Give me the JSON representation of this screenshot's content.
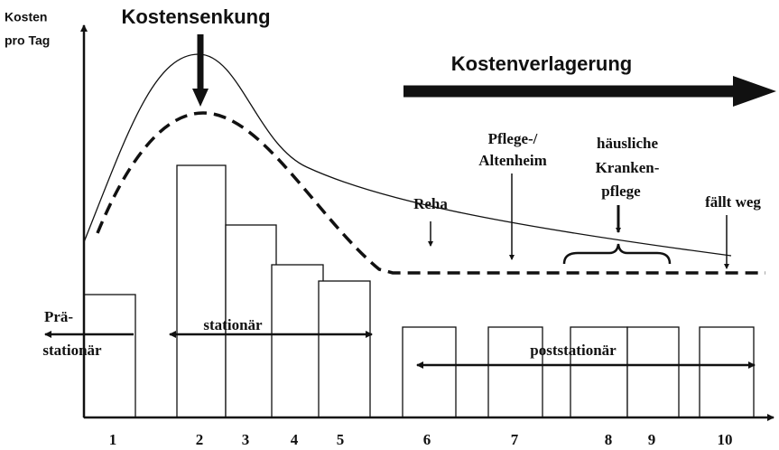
{
  "axis": {
    "y_label": [
      "Kosten",
      "pro Tag"
    ],
    "x_labels": [
      "1",
      "2",
      "3",
      "4",
      "5",
      "6",
      "7",
      "8",
      "9",
      "10"
    ]
  },
  "headings": {
    "reduction": "Kostensenkung",
    "shift": "Kostenverlagerung"
  },
  "annotations": {
    "reha": "Reha",
    "care_home": [
      "Pflege-/",
      "Altenheim"
    ],
    "home_care": [
      "häusliche",
      "Kranken-",
      "pflege"
    ],
    "dropped": "fällt weg"
  },
  "phases": {
    "pre": [
      "Prä-",
      "stationär"
    ],
    "inpatient": "stationär",
    "post": "poststationär"
  }
}
